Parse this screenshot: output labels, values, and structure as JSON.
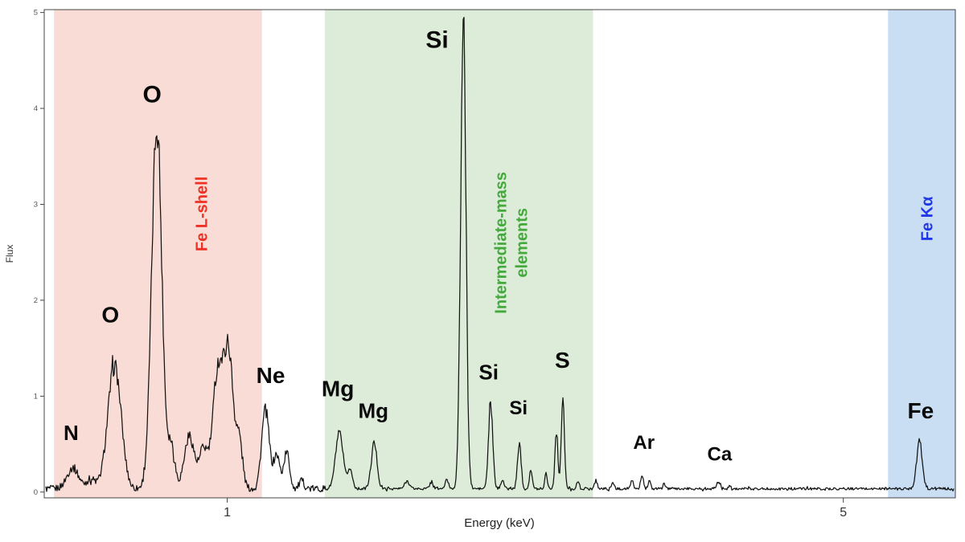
{
  "chart_data": {
    "type": "line",
    "title": "",
    "xlabel": "Energy (keV)",
    "ylabel": "Flux",
    "x_scale": "log",
    "x_range": [
      0.62,
      6.7
    ],
    "y_range": [
      0,
      5
    ],
    "x_ticks": [
      "1",
      "5"
    ],
    "x_tick_values": [
      1,
      5
    ],
    "y_ticks": [
      "0",
      "1",
      "2",
      "3",
      "4",
      "5"
    ],
    "y_tick_values": [
      0,
      1,
      2,
      3,
      4,
      5
    ],
    "line_color": "#141414",
    "frame_color": "#444444",
    "continuum": {
      "level": 0.035
    },
    "noise": {
      "base": 0.012,
      "value_scale": 0.045,
      "low_e_extra": 0.022,
      "low_e_cutoff": 1.3
    },
    "bands": [
      {
        "id": "fe-l-shell",
        "label": "Fe L-shell",
        "label_lines": [
          "Fe L-shell"
        ],
        "from": 0.636,
        "to": 1.095,
        "fill": "#f9dcd6",
        "label_color": "#ee3124",
        "label_energy": 0.935,
        "label_flux": 2.9
      },
      {
        "id": "intermediate-mass",
        "label": "Intermediate-mass elements",
        "label_lines": [
          "Intermediate-mass",
          "elements"
        ],
        "from": 1.29,
        "to": 2.6,
        "fill": "#dcecd8",
        "label_color": "#44a93c",
        "label_energy": 2.1,
        "label_flux": 2.6
      },
      {
        "id": "fe-k-alpha",
        "label": "Fe Kα",
        "label_lines": [
          "Fe Kα"
        ],
        "from": 5.62,
        "to": 6.7,
        "fill": "#c9def3",
        "label_color": "#2138e8",
        "label_energy": 6.22,
        "label_flux": 2.85
      }
    ],
    "peaks": [
      {
        "e": 0.668,
        "h": 0.22,
        "w": 0.01
      },
      {
        "e": 0.7,
        "h": 0.1,
        "w": 0.008
      },
      {
        "e": 0.745,
        "h": 1.28,
        "w": 0.013
      },
      {
        "e": 0.832,
        "h": 3.8,
        "w": 0.011
      },
      {
        "e": 0.864,
        "h": 0.45,
        "w": 0.008
      },
      {
        "e": 0.906,
        "h": 0.55,
        "w": 0.012
      },
      {
        "e": 0.94,
        "h": 0.4,
        "w": 0.01
      },
      {
        "e": 0.976,
        "h": 1.22,
        "w": 0.013
      },
      {
        "e": 1.004,
        "h": 1.38,
        "w": 0.012
      },
      {
        "e": 1.032,
        "h": 0.5,
        "w": 0.009
      },
      {
        "e": 1.105,
        "h": 0.82,
        "w": 0.011
      },
      {
        "e": 1.138,
        "h": 0.35,
        "w": 0.009
      },
      {
        "e": 1.168,
        "h": 0.38,
        "w": 0.009
      },
      {
        "e": 1.215,
        "h": 0.08,
        "w": 0.008
      },
      {
        "e": 1.34,
        "h": 0.58,
        "w": 0.013
      },
      {
        "e": 1.378,
        "h": 0.2,
        "w": 0.009
      },
      {
        "e": 1.468,
        "h": 0.48,
        "w": 0.011
      },
      {
        "e": 1.6,
        "h": 0.08,
        "w": 0.01
      },
      {
        "e": 1.705,
        "h": 0.07,
        "w": 0.008
      },
      {
        "e": 1.775,
        "h": 0.09,
        "w": 0.008
      },
      {
        "e": 1.853,
        "h": 4.85,
        "w": 0.013
      },
      {
        "e": 1.99,
        "h": 0.88,
        "w": 0.011
      },
      {
        "e": 2.052,
        "h": 0.1,
        "w": 0.008
      },
      {
        "e": 2.145,
        "h": 0.48,
        "w": 0.01
      },
      {
        "e": 2.21,
        "h": 0.2,
        "w": 0.008
      },
      {
        "e": 2.3,
        "h": 0.16,
        "w": 0.008
      },
      {
        "e": 2.363,
        "h": 0.6,
        "w": 0.009
      },
      {
        "e": 2.403,
        "h": 0.92,
        "w": 0.01
      },
      {
        "e": 2.5,
        "h": 0.08,
        "w": 0.008
      },
      {
        "e": 2.62,
        "h": 0.09,
        "w": 0.009
      },
      {
        "e": 2.74,
        "h": 0.07,
        "w": 0.008
      },
      {
        "e": 2.88,
        "h": 0.09,
        "w": 0.009
      },
      {
        "e": 2.955,
        "h": 0.15,
        "w": 0.01
      },
      {
        "e": 3.015,
        "h": 0.09,
        "w": 0.008
      },
      {
        "e": 3.13,
        "h": 0.07,
        "w": 0.008
      },
      {
        "e": 3.61,
        "h": 0.07,
        "w": 0.018
      },
      {
        "e": 3.72,
        "h": 0.04,
        "w": 0.01
      },
      {
        "e": 6.1,
        "h": 0.5,
        "w": 0.045
      }
    ],
    "annotations": [
      {
        "label": "N",
        "energy": 0.665,
        "flux": 0.62,
        "size": 26
      },
      {
        "label": "O",
        "energy": 0.737,
        "flux": 1.85,
        "size": 28
      },
      {
        "label": "O",
        "energy": 0.822,
        "flux": 4.15,
        "size": 30
      },
      {
        "label": "Ne",
        "energy": 1.12,
        "flux": 1.22,
        "size": 28
      },
      {
        "label": "Mg",
        "energy": 1.335,
        "flux": 1.08,
        "size": 28
      },
      {
        "label": "Mg",
        "energy": 1.465,
        "flux": 0.85,
        "size": 26
      },
      {
        "label": "Si",
        "energy": 1.73,
        "flux": 4.72,
        "size": 30
      },
      {
        "label": "Si",
        "energy": 1.98,
        "flux": 1.25,
        "size": 26
      },
      {
        "label": "Si",
        "energy": 2.14,
        "flux": 0.88,
        "size": 24
      },
      {
        "label": "S",
        "energy": 2.4,
        "flux": 1.38,
        "size": 28
      },
      {
        "label": "Ar",
        "energy": 2.97,
        "flux": 0.52,
        "size": 24
      },
      {
        "label": "Ca",
        "energy": 3.62,
        "flux": 0.4,
        "size": 24
      },
      {
        "label": "Fe",
        "energy": 6.12,
        "flux": 0.85,
        "size": 28
      }
    ]
  }
}
